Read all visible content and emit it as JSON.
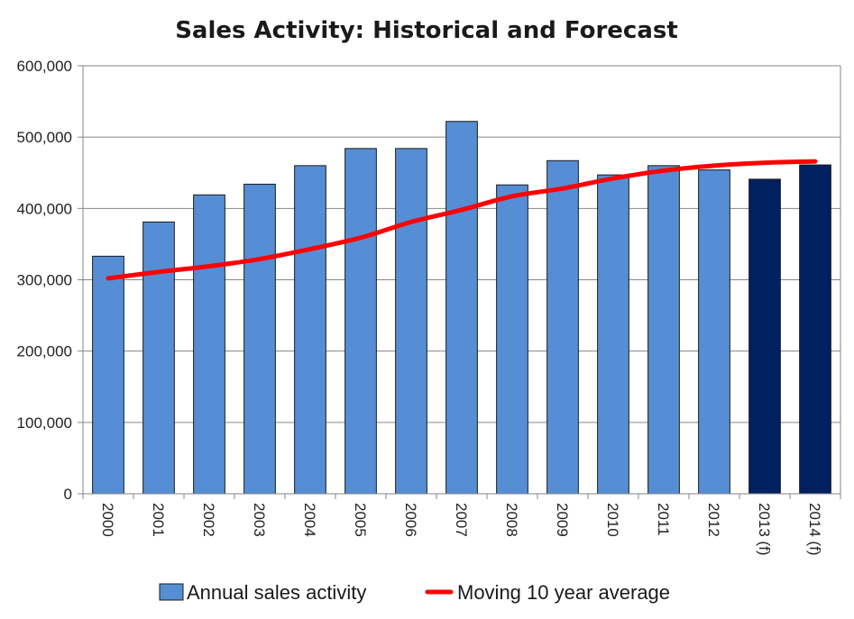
{
  "chart_data": {
    "type": "bar",
    "title": "Sales Activity: Historical and Forecast",
    "xlabel": "",
    "ylabel": "",
    "categories": [
      "2000",
      "2001",
      "2002",
      "2003",
      "2004",
      "2005",
      "2006",
      "2007",
      "2008",
      "2009",
      "2010",
      "2011",
      "2012",
      "2013 (f)",
      "2014 (f)"
    ],
    "ylim": [
      0,
      600000
    ],
    "yticks": [
      0,
      100000,
      200000,
      300000,
      400000,
      500000,
      600000
    ],
    "ytick_labels": [
      "0",
      "100,000",
      "200,000",
      "300,000",
      "400,000",
      "500,000",
      "600,000"
    ],
    "grid": true,
    "legend_position": "bottom",
    "series": [
      {
        "name": "Annual sales activity",
        "kind": "bar",
        "color": "#558ed5",
        "forecast_color": "#002060",
        "forecast_from_index": 13,
        "values": [
          333000,
          381000,
          419000,
          434000,
          460000,
          484000,
          484000,
          522000,
          433000,
          467000,
          447000,
          460000,
          454000,
          441000,
          461000
        ]
      },
      {
        "name": "Moving 10 year average",
        "kind": "line",
        "color": "#ff0000",
        "values": [
          302000,
          311000,
          319000,
          329000,
          343000,
          359000,
          381000,
          398000,
          417000,
          428000,
          442000,
          453000,
          460000,
          464000,
          466000
        ]
      }
    ]
  }
}
